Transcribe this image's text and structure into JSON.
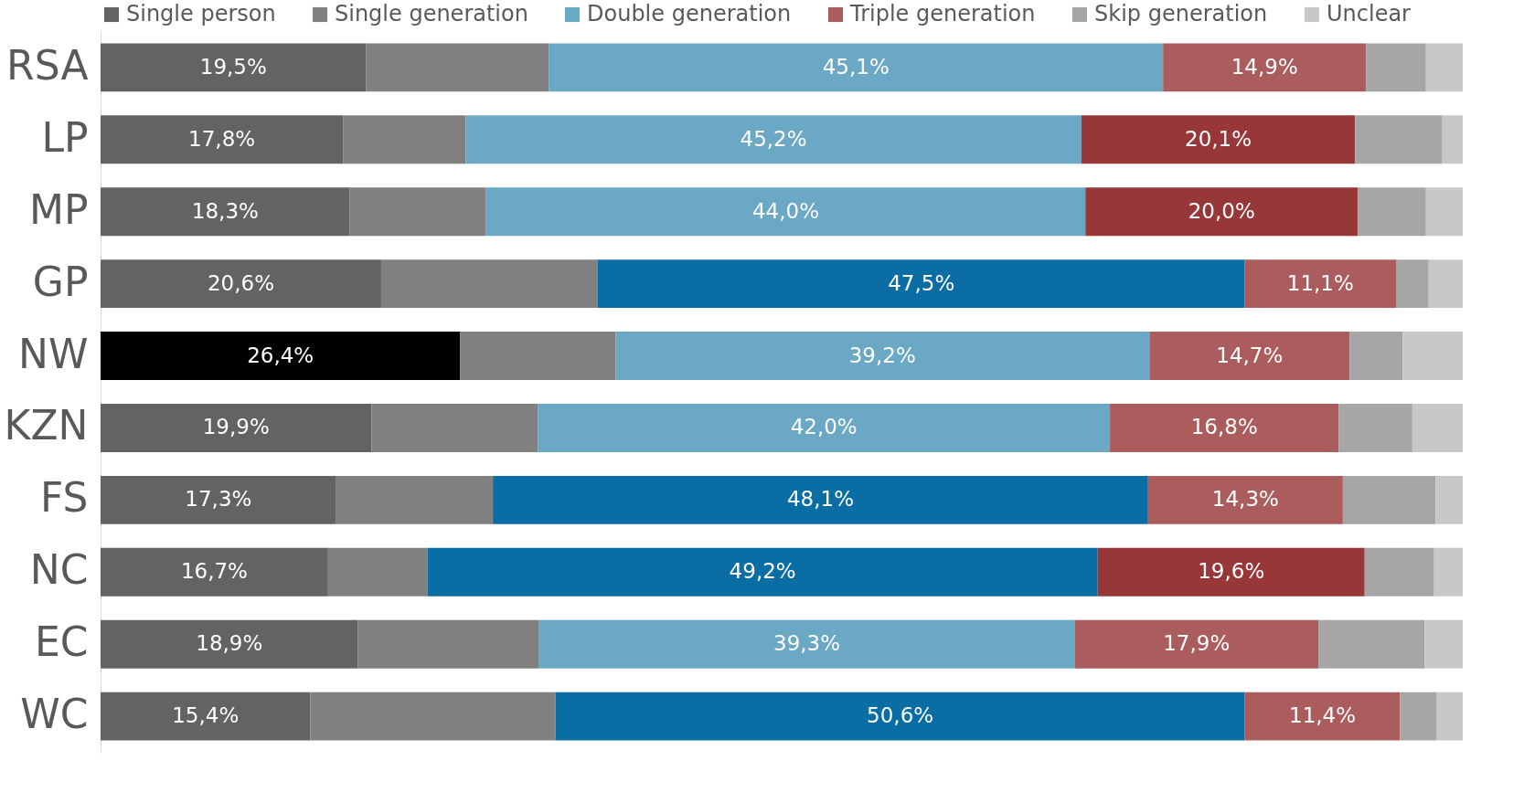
{
  "chart_data": {
    "type": "bar",
    "orientation": "horizontal",
    "stacked": true,
    "legend": "top",
    "grid": false,
    "tick_labels": "y",
    "xlim": [
      0,
      100
    ],
    "categories": [
      "RSA",
      "LP",
      "MP",
      "GP",
      "NW",
      "KZN",
      "FS",
      "NC",
      "EC",
      "WC"
    ],
    "series": [
      {
        "name": "Single person",
        "color": "#636363",
        "colors": [
          "#636363",
          "#636363",
          "#636363",
          "#636363",
          "#000000",
          "#636363",
          "#636363",
          "#636363",
          "#636363",
          "#636363"
        ],
        "values": [
          19.5,
          17.8,
          18.3,
          20.6,
          26.4,
          19.9,
          17.3,
          16.7,
          18.9,
          15.4
        ],
        "value_labels": [
          "19,5%",
          "17,8%",
          "18,3%",
          "20,6%",
          "26,4%",
          "19,9%",
          "17,3%",
          "16,7%",
          "18,9%",
          "15,4%"
        ]
      },
      {
        "name": "Single generation",
        "color": "#808080",
        "values": [
          13.4,
          9.0,
          10.0,
          15.9,
          11.4,
          12.2,
          11.5,
          7.3,
          13.3,
          18.0
        ]
      },
      {
        "name": "Double generation",
        "color": "#6aa8c6",
        "colors": [
          "#6aa8c6",
          "#6aa8c6",
          "#6aa8c6",
          "#0a6da3",
          "#6aa8c6",
          "#6aa8c6",
          "#0a6da3",
          "#0a6da3",
          "#6aa8c6",
          "#0a6da3"
        ],
        "values": [
          45.1,
          45.2,
          44.0,
          47.5,
          39.2,
          42.0,
          48.1,
          49.2,
          39.3,
          50.6
        ],
        "value_labels": [
          "45,1%",
          "45,2%",
          "44,0%",
          "47,5%",
          "39,2%",
          "42,0%",
          "48,1%",
          "49,2%",
          "39,3%",
          "50,6%"
        ]
      },
      {
        "name": "Triple generation",
        "color": "#ab5c5c",
        "colors": [
          "#ab5c5c",
          "#973737",
          "#973737",
          "#ab5c5c",
          "#ab5c5c",
          "#ab5c5c",
          "#ab5c5c",
          "#973737",
          "#ab5c5c",
          "#ab5c5c"
        ],
        "values": [
          14.9,
          20.1,
          20.0,
          11.1,
          14.7,
          16.8,
          14.3,
          19.6,
          17.9,
          11.4
        ],
        "value_labels": [
          "14,9%",
          "20,1%",
          "20,0%",
          "11,1%",
          "14,7%",
          "16,8%",
          "14,3%",
          "19,6%",
          "17,9%",
          "11,4%"
        ]
      },
      {
        "name": "Skip generation",
        "color": "#a6a6a6",
        "values": [
          4.4,
          6.4,
          5.0,
          2.4,
          3.9,
          5.4,
          6.8,
          5.1,
          7.8,
          2.7
        ]
      },
      {
        "name": "Unclear",
        "color": "#c8c8c8",
        "values": [
          2.7,
          1.5,
          2.7,
          2.5,
          4.4,
          3.7,
          2.0,
          2.1,
          2.8,
          1.9
        ]
      }
    ]
  }
}
